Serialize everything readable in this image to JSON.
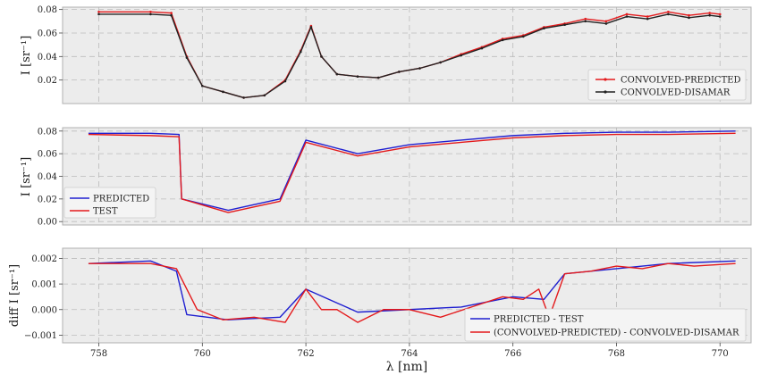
{
  "colors": {
    "panel_bg": "#ececec",
    "grid": "#bbbbbb",
    "red": "#e41a1c",
    "black": "#222222",
    "blue": "#1f1fd0"
  },
  "chart_data": [
    {
      "type": "line",
      "ylabel": "I [sr⁻¹]",
      "xlim": [
        757.3,
        770.6
      ],
      "ylim": [
        0.0,
        0.082
      ],
      "y_ticks": [
        "0.02",
        "0.04",
        "0.06",
        "0.08"
      ],
      "grid": true,
      "legend_position": "lower-right",
      "series": [
        {
          "name": "CONVOLVED-PREDICTED",
          "color": "#e41a1c",
          "x": [
            758.0,
            759.0,
            759.4,
            759.7,
            760.0,
            760.4,
            760.8,
            761.2,
            761.6,
            761.9,
            762.1,
            762.3,
            762.6,
            763.0,
            763.4,
            763.8,
            764.2,
            764.6,
            765.0,
            765.4,
            765.8,
            766.2,
            766.6,
            767.0,
            767.4,
            767.8,
            768.2,
            768.6,
            769.0,
            769.4,
            769.8,
            770.0
          ],
          "values": [
            0.078,
            0.078,
            0.077,
            0.04,
            0.015,
            0.01,
            0.005,
            0.007,
            0.02,
            0.045,
            0.066,
            0.04,
            0.025,
            0.023,
            0.022,
            0.027,
            0.03,
            0.035,
            0.042,
            0.048,
            0.055,
            0.058,
            0.065,
            0.068,
            0.072,
            0.07,
            0.076,
            0.074,
            0.078,
            0.075,
            0.077,
            0.076
          ]
        },
        {
          "name": "CONVOLVED-DISAMAR",
          "color": "#222222",
          "x": [
            758.0,
            759.0,
            759.4,
            759.7,
            760.0,
            760.4,
            760.8,
            761.2,
            761.6,
            761.9,
            762.1,
            762.3,
            762.6,
            763.0,
            763.4,
            763.8,
            764.2,
            764.6,
            765.0,
            765.4,
            765.8,
            766.2,
            766.6,
            767.0,
            767.4,
            767.8,
            768.2,
            768.6,
            769.0,
            769.4,
            769.8,
            770.0
          ],
          "values": [
            0.076,
            0.076,
            0.075,
            0.039,
            0.015,
            0.01,
            0.005,
            0.007,
            0.019,
            0.044,
            0.065,
            0.04,
            0.025,
            0.023,
            0.022,
            0.027,
            0.03,
            0.035,
            0.041,
            0.047,
            0.054,
            0.057,
            0.064,
            0.067,
            0.07,
            0.068,
            0.074,
            0.072,
            0.076,
            0.073,
            0.075,
            0.074
          ]
        }
      ]
    },
    {
      "type": "line",
      "ylabel": "I [sr⁻¹]",
      "xlim": [
        757.3,
        770.6
      ],
      "ylim": [
        -0.003,
        0.083
      ],
      "y_ticks": [
        "0.00",
        "0.02",
        "0.04",
        "0.06",
        "0.08"
      ],
      "grid": true,
      "legend_position": "lower-left",
      "series": [
        {
          "name": "PREDICTED",
          "color": "#1f1fd0",
          "x": [
            757.8,
            759.0,
            759.55,
            759.6,
            760.5,
            761.5,
            762.0,
            763.0,
            764.0,
            765.0,
            766.0,
            767.0,
            768.0,
            769.0,
            770.3
          ],
          "values": [
            0.078,
            0.078,
            0.077,
            0.02,
            0.01,
            0.02,
            0.072,
            0.06,
            0.068,
            0.072,
            0.076,
            0.078,
            0.079,
            0.079,
            0.08
          ]
        },
        {
          "name": "TEST",
          "color": "#e41a1c",
          "x": [
            757.8,
            759.0,
            759.55,
            759.6,
            760.5,
            761.5,
            762.0,
            763.0,
            764.0,
            765.0,
            766.0,
            767.0,
            768.0,
            769.0,
            770.3
          ],
          "values": [
            0.077,
            0.076,
            0.075,
            0.02,
            0.008,
            0.018,
            0.07,
            0.058,
            0.066,
            0.07,
            0.074,
            0.076,
            0.077,
            0.077,
            0.078
          ]
        }
      ]
    },
    {
      "type": "line",
      "ylabel": "diff I [sr⁻¹]",
      "xlabel": "λ [nm]",
      "xlim": [
        757.3,
        770.6
      ],
      "ylim": [
        -0.0013,
        0.0024
      ],
      "x_ticks": [
        "758",
        "760",
        "762",
        "764",
        "766",
        "768",
        "770"
      ],
      "y_ticks": [
        "−0.001",
        "0.000",
        "0.001",
        "0.002"
      ],
      "grid": true,
      "legend_position": "lower-right",
      "series": [
        {
          "name": "PREDICTED - TEST",
          "color": "#1f1fd0",
          "x": [
            757.8,
            759.0,
            759.5,
            759.7,
            760.5,
            761.5,
            762.0,
            763.0,
            764.0,
            765.0,
            766.0,
            766.6,
            767.0,
            768.0,
            769.0,
            770.3
          ],
          "values": [
            0.0018,
            0.0019,
            0.0015,
            -0.0002,
            -0.0004,
            -0.0003,
            0.0008,
            -0.0001,
            0.0,
            0.0001,
            0.0005,
            0.0004,
            0.0014,
            0.0016,
            0.0018,
            0.0019
          ]
        },
        {
          "name": "(CONVOLVED-PREDICTED) - CONVOLVED-DISAMAR",
          "color": "#e41a1c",
          "x": [
            757.8,
            759.0,
            759.5,
            759.9,
            760.4,
            761.0,
            761.6,
            762.0,
            762.3,
            762.6,
            763.0,
            763.5,
            764.0,
            764.6,
            765.2,
            765.8,
            766.2,
            766.5,
            766.7,
            767.0,
            767.5,
            768.0,
            768.5,
            769.0,
            769.5,
            770.3
          ],
          "values": [
            0.0018,
            0.0018,
            0.0016,
            0.0,
            -0.0004,
            -0.0003,
            -0.0005,
            0.0008,
            0.0,
            0.0,
            -0.0005,
            0.0,
            0.0,
            -0.0003,
            0.0001,
            0.0005,
            0.0004,
            0.0008,
            -0.0003,
            0.0014,
            0.0015,
            0.0017,
            0.0016,
            0.0018,
            0.0017,
            0.0018
          ]
        }
      ]
    }
  ]
}
